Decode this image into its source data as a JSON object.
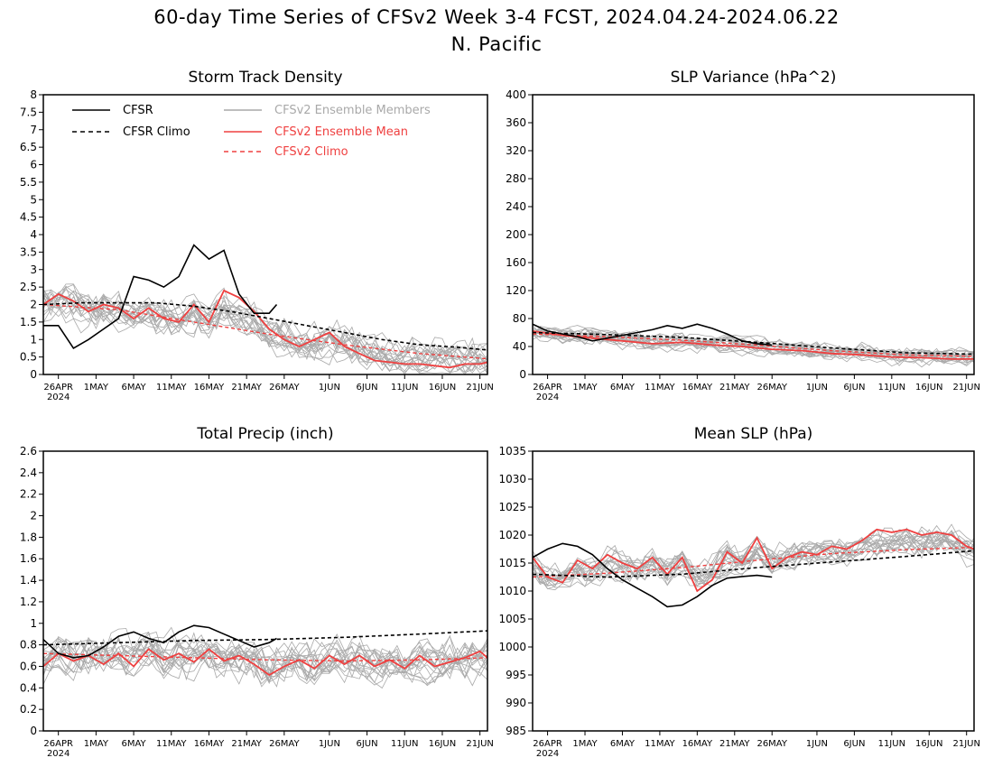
{
  "title": "60-day Time Series of CFSv2 Week 3-4 FCST, 2024.04.24-2024.06.22",
  "subtitle": "N. Pacific",
  "colors": {
    "cfsr": "#000000",
    "member": "#a9a9a9",
    "mean": "#ef4040",
    "axis": "#000000"
  },
  "x_tick_labels": [
    "26APR",
    "1MAY",
    "6MAY",
    "11MAY",
    "16MAY",
    "21MAY",
    "26MAY",
    "1JUN",
    "6JUN",
    "11JUN",
    "16JUN",
    "21JUN"
  ],
  "x_tick_days": [
    2,
    7,
    12,
    17,
    22,
    27,
    32,
    38,
    43,
    48,
    53,
    58
  ],
  "x_year_label": "2024",
  "legend": {
    "cfsr": "CFSR",
    "cfsr_climo": "CFSR Climo",
    "members": "CFSv2 Ensemble Members",
    "mean": "CFSv2 Ensemble Mean",
    "climo": "CFSv2 Climo"
  },
  "chart_data": [
    {
      "type": "line",
      "title": "Storm Track Density",
      "x_unit": "day index from 24 Apr 2024 (0-59)",
      "ylim": [
        0,
        8
      ],
      "yticks": [
        "0",
        "0.5",
        "1",
        "1.5",
        "2",
        "2.5",
        "3",
        "3.5",
        "4",
        "4.5",
        "5",
        "5.5",
        "6",
        "6.5",
        "7",
        "7.5",
        "8"
      ],
      "series": [
        {
          "name": "CFSR",
          "x": [
            0,
            2,
            4,
            6,
            8,
            10,
            12,
            14,
            16,
            18,
            20,
            22,
            24,
            26,
            28,
            30,
            31
          ],
          "y": [
            1.4,
            1.4,
            0.75,
            1.0,
            1.3,
            1.6,
            2.8,
            2.7,
            2.5,
            2.8,
            3.7,
            3.3,
            3.55,
            2.3,
            1.75,
            1.75,
            2.0
          ]
        },
        {
          "name": "CFSR Climo",
          "x": [
            0,
            5,
            10,
            15,
            20,
            25,
            30,
            35,
            40,
            45,
            50,
            55,
            59
          ],
          "y": [
            2.0,
            2.05,
            2.05,
            2.05,
            1.95,
            1.8,
            1.6,
            1.4,
            1.2,
            1.0,
            0.85,
            0.78,
            0.7
          ]
        },
        {
          "name": "CFSv2 Ensemble Mean",
          "x": [
            0,
            2,
            4,
            6,
            8,
            10,
            12,
            14,
            16,
            18,
            20,
            22,
            24,
            26,
            28,
            30,
            32,
            34,
            36,
            38,
            40,
            42,
            44,
            46,
            48,
            50,
            52,
            54,
            56,
            58,
            59
          ],
          "y": [
            2.0,
            2.3,
            2.1,
            1.8,
            2.0,
            1.9,
            1.6,
            1.9,
            1.6,
            1.5,
            2.0,
            1.5,
            2.4,
            2.2,
            1.8,
            1.3,
            1.0,
            0.8,
            1.0,
            1.2,
            0.8,
            0.6,
            0.4,
            0.35,
            0.3,
            0.3,
            0.25,
            0.2,
            0.3,
            0.3,
            0.35
          ]
        },
        {
          "name": "CFSv2 Climo",
          "x": [
            0,
            10,
            20,
            30,
            40,
            50,
            59
          ],
          "y": [
            2.0,
            1.85,
            1.5,
            1.15,
            0.85,
            0.6,
            0.45
          ]
        }
      ]
    },
    {
      "type": "line",
      "title": "SLP Variance (hPa^2)",
      "ylim": [
        0,
        400
      ],
      "yticks": [
        "0",
        "40",
        "80",
        "120",
        "160",
        "200",
        "240",
        "280",
        "320",
        "360",
        "400"
      ],
      "series": [
        {
          "name": "CFSR",
          "x": [
            0,
            2,
            4,
            6,
            8,
            10,
            12,
            14,
            16,
            18,
            20,
            22,
            24,
            26,
            28,
            30,
            32
          ],
          "y": [
            72,
            62,
            58,
            54,
            48,
            52,
            56,
            60,
            64,
            70,
            66,
            72,
            66,
            58,
            48,
            44,
            42
          ]
        },
        {
          "name": "CFSR Climo",
          "x": [
            0,
            10,
            20,
            30,
            40,
            50,
            59
          ],
          "y": [
            60,
            57,
            53,
            46,
            38,
            31,
            29
          ]
        },
        {
          "name": "CFSv2 Ensemble Mean",
          "x": [
            0,
            4,
            8,
            12,
            16,
            20,
            24,
            28,
            32,
            36,
            40,
            44,
            48,
            52,
            56,
            59
          ],
          "y": [
            62,
            56,
            52,
            48,
            44,
            46,
            42,
            40,
            36,
            34,
            30,
            28,
            25,
            24,
            22,
            22
          ]
        },
        {
          "name": "CFSv2 Climo",
          "x": [
            0,
            10,
            20,
            30,
            40,
            50,
            59
          ],
          "y": [
            58,
            54,
            49,
            42,
            34,
            28,
            26
          ]
        }
      ]
    },
    {
      "type": "line",
      "title": "Total Precip (inch)",
      "ylim": [
        0,
        2.6
      ],
      "yticks": [
        "0",
        "0.2",
        "0.4",
        "0.6",
        "0.8",
        "1",
        "1.2",
        "1.4",
        "1.6",
        "1.8",
        "2",
        "2.2",
        "2.4",
        "2.6"
      ],
      "series": [
        {
          "name": "CFSR",
          "x": [
            0,
            2,
            4,
            6,
            8,
            10,
            12,
            14,
            16,
            18,
            20,
            22,
            24,
            26,
            28,
            30,
            31
          ],
          "y": [
            0.85,
            0.72,
            0.68,
            0.7,
            0.78,
            0.88,
            0.92,
            0.86,
            0.82,
            0.92,
            0.98,
            0.96,
            0.9,
            0.84,
            0.78,
            0.82,
            0.86
          ]
        },
        {
          "name": "CFSR Climo",
          "x": [
            0,
            10,
            20,
            30,
            40,
            50,
            59
          ],
          "y": [
            0.8,
            0.82,
            0.84,
            0.85,
            0.87,
            0.9,
            0.93
          ]
        },
        {
          "name": "CFSv2 Ensemble Mean",
          "x": [
            0,
            2,
            4,
            6,
            8,
            10,
            12,
            14,
            16,
            18,
            20,
            22,
            24,
            26,
            28,
            30,
            32,
            34,
            36,
            38,
            40,
            42,
            44,
            46,
            48,
            50,
            52,
            54,
            56,
            58,
            59
          ],
          "y": [
            0.6,
            0.72,
            0.65,
            0.7,
            0.62,
            0.72,
            0.6,
            0.76,
            0.66,
            0.72,
            0.64,
            0.76,
            0.65,
            0.7,
            0.62,
            0.52,
            0.6,
            0.66,
            0.58,
            0.7,
            0.62,
            0.7,
            0.6,
            0.66,
            0.58,
            0.7,
            0.6,
            0.64,
            0.68,
            0.74,
            0.68
          ]
        },
        {
          "name": "CFSv2 Climo",
          "x": [
            0,
            10,
            20,
            30,
            40,
            50,
            59
          ],
          "y": [
            0.72,
            0.7,
            0.68,
            0.66,
            0.65,
            0.66,
            0.68
          ]
        }
      ]
    },
    {
      "type": "line",
      "title": "Mean SLP (hPa)",
      "ylim": [
        985,
        1035
      ],
      "yticks": [
        "985",
        "990",
        "995",
        "1000",
        "1005",
        "1010",
        "1015",
        "1020",
        "1025",
        "1030",
        "1035"
      ],
      "series": [
        {
          "name": "CFSR",
          "x": [
            0,
            2,
            4,
            6,
            8,
            10,
            12,
            14,
            16,
            18,
            20,
            22,
            24,
            26,
            28,
            30,
            32
          ],
          "y": [
            1016,
            1017.5,
            1018.5,
            1018,
            1016.5,
            1014,
            1012,
            1010.5,
            1009,
            1007.2,
            1007.5,
            1009,
            1011,
            1012.3,
            1012.6,
            1012.8,
            1012.5
          ]
        },
        {
          "name": "CFSR Climo",
          "x": [
            0,
            10,
            20,
            30,
            40,
            50,
            59
          ],
          "y": [
            1013,
            1012.5,
            1013,
            1014.2,
            1015.2,
            1016.2,
            1017.2
          ]
        },
        {
          "name": "CFSv2 Ensemble Mean",
          "x": [
            0,
            2,
            4,
            6,
            8,
            10,
            12,
            14,
            16,
            18,
            20,
            22,
            24,
            26,
            28,
            30,
            32,
            34,
            36,
            38,
            40,
            42,
            44,
            46,
            48,
            50,
            52,
            54,
            56,
            58,
            59
          ],
          "y": [
            1016,
            1012.5,
            1011.5,
            1015.5,
            1014,
            1016.5,
            1015,
            1014,
            1016,
            1013,
            1016,
            1010,
            1012,
            1017,
            1015,
            1019.5,
            1014,
            1016,
            1017,
            1016.5,
            1018,
            1017.5,
            1019,
            1021,
            1020.5,
            1021,
            1020,
            1020.5,
            1020,
            1018,
            1017.5
          ]
        },
        {
          "name": "CFSv2 Climo",
          "x": [
            0,
            10,
            20,
            30,
            40,
            50,
            59
          ],
          "y": [
            1012.5,
            1013.2,
            1014.2,
            1015.5,
            1016.7,
            1017.4,
            1017.8
          ]
        }
      ]
    }
  ]
}
